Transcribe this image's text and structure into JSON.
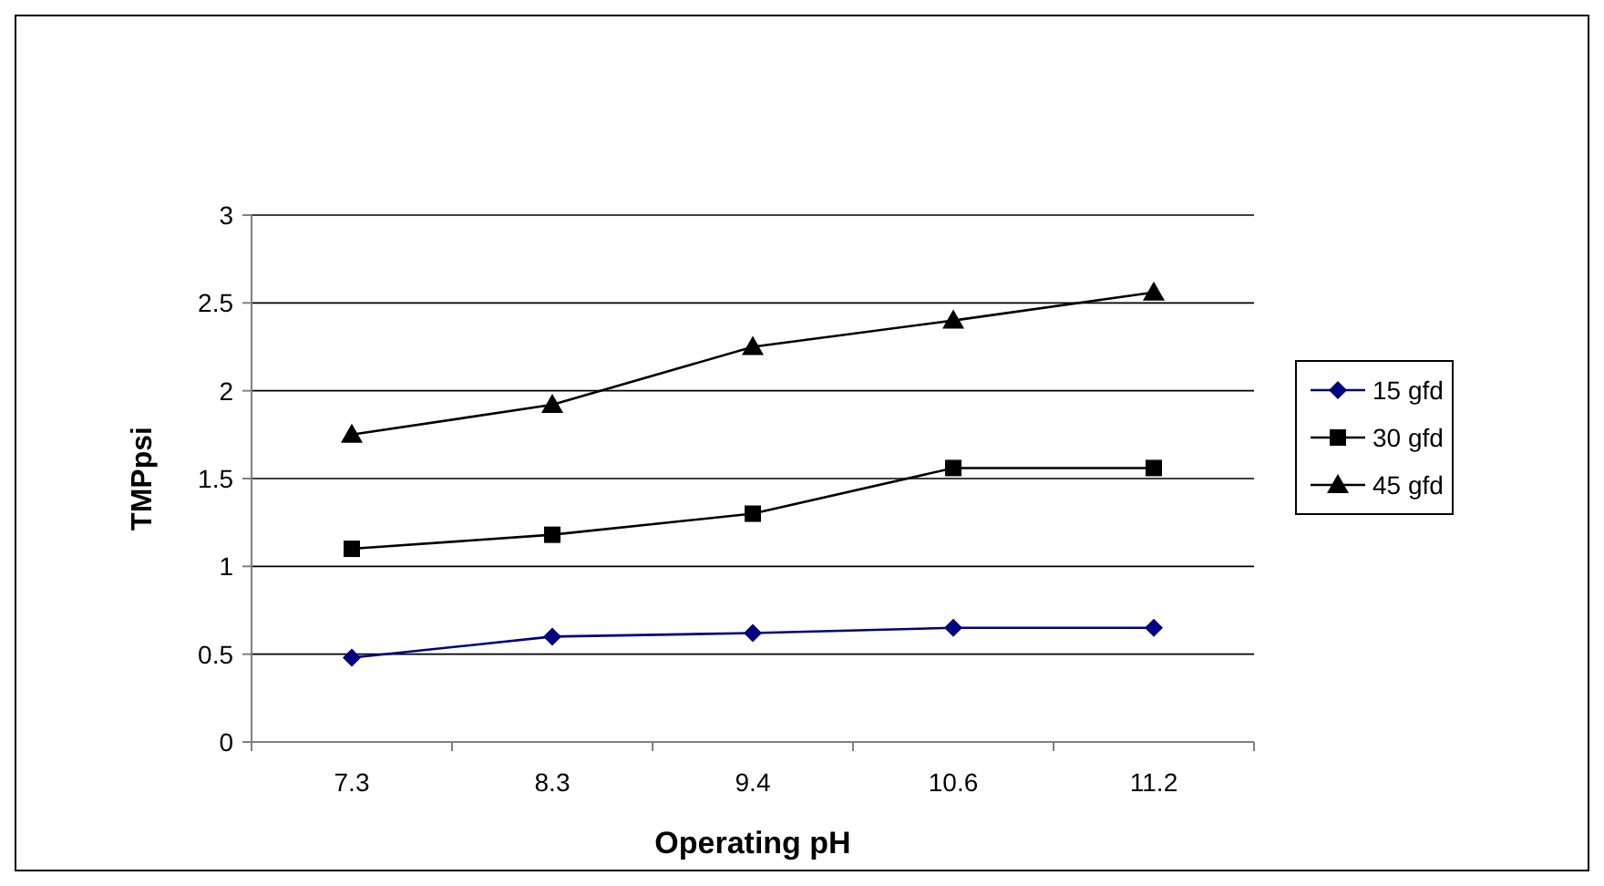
{
  "chart_data": {
    "type": "line",
    "xlabel": "Operating pH",
    "ylabel": "TMPpsi",
    "categories": [
      "7.3",
      "8.3",
      "9.4",
      "10.6",
      "11.2"
    ],
    "series": [
      {
        "name": "15 gfd",
        "color": "#000080",
        "marker": "diamond",
        "values": [
          0.48,
          0.6,
          0.62,
          0.65,
          0.65
        ]
      },
      {
        "name": "30 gfd",
        "color": "#000000",
        "marker": "square",
        "values": [
          1.1,
          1.18,
          1.3,
          1.56,
          1.56
        ]
      },
      {
        "name": "45 gfd",
        "color": "#000000",
        "marker": "triangle",
        "values": [
          1.75,
          1.92,
          2.25,
          2.4,
          2.56
        ]
      }
    ],
    "ylim": [
      0,
      3
    ],
    "yticks": [
      0,
      0.5,
      1,
      1.5,
      2,
      2.5,
      3
    ],
    "grid": "y",
    "legend": "right"
  }
}
